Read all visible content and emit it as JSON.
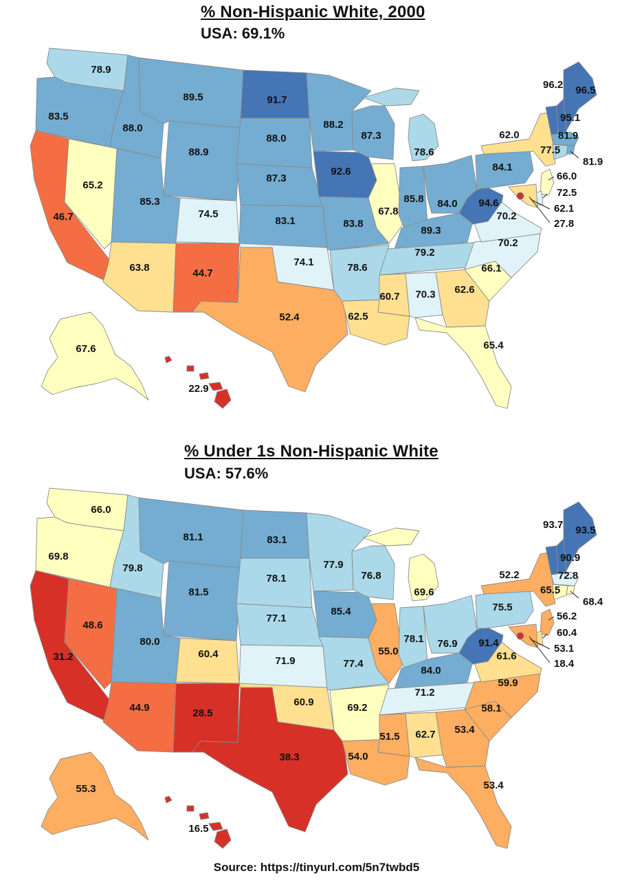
{
  "colors": {
    "lt_40": "#d73027",
    "40_50": "#f46d43",
    "50_60": "#fdae61",
    "60_65": "#fee090",
    "65_70": "#ffffbf",
    "70_75": "#e0f3f8",
    "75_80": "#abd9e9",
    "80_90": "#74add1",
    "gt_90": "#4575b4"
  },
  "map_2000": {
    "title": "% Non-Hispanic White, 2000",
    "usa_label": "USA: 69.1%",
    "states": {
      "WA": "78.9",
      "OR": "83.5",
      "CA": "46.7",
      "NV": "65.2",
      "ID": "88.0",
      "MT": "89.5",
      "WY": "88.9",
      "UT": "85.3",
      "CO": "74.5",
      "AZ": "63.8",
      "NM": "44.7",
      "ND": "91.7",
      "SD": "88.0",
      "NE": "87.3",
      "KS": "83.1",
      "OK": "74.1",
      "TX": "52.4",
      "MN": "88.2",
      "IA": "92.6",
      "MO": "83.8",
      "AR": "78.6",
      "LA": "62.5",
      "WI": "87.3",
      "IL": "67.8",
      "MI": "78.6",
      "IN": "85.8",
      "OH": "84.0",
      "KY": "89.3",
      "TN": "79.2",
      "MS": "60.7",
      "AL": "70.3",
      "GA": "62.6",
      "FL": "65.4",
      "SC": "66.1",
      "NC": "70.2",
      "VA": "70.2",
      "WV": "94.6",
      "PA": "84.1",
      "NY": "62.0",
      "VT": "96.2",
      "NH": "95.1",
      "ME": "96.5",
      "MA": "81.9",
      "RI": "81.9",
      "CT": "77.5",
      "NJ": "66.0",
      "DE": "72.5",
      "MD": "62.1",
      "DC": "27.8",
      "AK": "67.6",
      "HI": "22.9"
    }
  },
  "map_under1": {
    "title": "% Under 1s Non-Hispanic White",
    "usa_label": "USA: 57.6%",
    "states": {
      "WA": "66.0",
      "OR": "69.8",
      "CA": "31.2",
      "NV": "48.6",
      "ID": "79.8",
      "MT": "81.1",
      "WY": "81.5",
      "UT": "80.0",
      "CO": "60.4",
      "AZ": "44.9",
      "NM": "28.5",
      "ND": "83.1",
      "SD": "78.1",
      "NE": "77.1",
      "KS": "71.9",
      "OK": "60.9",
      "TX": "38.3",
      "MN": "77.9",
      "IA": "85.4",
      "MO": "77.4",
      "AR": "69.2",
      "LA": "54.0",
      "WI": "76.8",
      "IL": "55.0",
      "MI": "69.6",
      "IN": "78.1",
      "OH": "76.9",
      "KY": "84.0",
      "TN": "71.2",
      "MS": "51.5",
      "AL": "62.7",
      "GA": "53.4",
      "FL": "53.4",
      "SC": "58.1",
      "NC": "59.9",
      "VA": "61.6",
      "WV": "91.4",
      "PA": "75.5",
      "NY": "52.2",
      "VT": "93.7",
      "NH": "90.9",
      "ME": "93.5",
      "MA": "72.8",
      "RI": "68.4",
      "CT": "65.5",
      "NJ": "56.2",
      "DE": "60.4",
      "MD": "53.1",
      "DC": "18.4",
      "AK": "55.3",
      "HI": "16.5"
    }
  },
  "source": "Source: https://tinyurl.com/5n7twbd5"
}
